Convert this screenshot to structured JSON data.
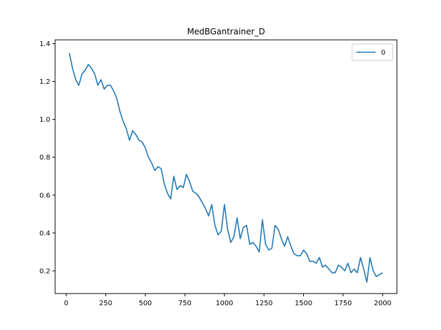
{
  "chart_data": {
    "type": "line",
    "title": "MedBGantrainer_D",
    "xlabel": "",
    "ylabel": "",
    "xlim": [
      -70,
      2090
    ],
    "ylim": [
      0.08,
      1.42
    ],
    "x_ticks": [
      0,
      250,
      500,
      750,
      1000,
      1250,
      1500,
      1750,
      2000
    ],
    "x_tick_labels": [
      "0",
      "250",
      "500",
      "750",
      "1000",
      "1250",
      "1500",
      "1750",
      "2000"
    ],
    "y_ticks": [
      0.2,
      0.4,
      0.6,
      0.8,
      1.0,
      1.2,
      1.4
    ],
    "y_tick_labels": [
      "0.2",
      "0.4",
      "0.6",
      "0.8",
      "1.0",
      "1.2",
      "1.4"
    ],
    "grid": false,
    "legend": {
      "position": "top-right",
      "entries": [
        "0"
      ]
    },
    "series": [
      {
        "name": "0",
        "color": "#1f77b4",
        "x": [
          20,
          40,
          60,
          80,
          100,
          120,
          140,
          160,
          180,
          200,
          220,
          240,
          260,
          280,
          300,
          320,
          340,
          360,
          380,
          400,
          420,
          440,
          460,
          480,
          500,
          520,
          540,
          560,
          580,
          600,
          620,
          640,
          660,
          680,
          700,
          720,
          740,
          760,
          780,
          800,
          820,
          840,
          860,
          880,
          900,
          920,
          940,
          960,
          980,
          1000,
          1020,
          1040,
          1060,
          1080,
          1100,
          1120,
          1140,
          1160,
          1180,
          1200,
          1220,
          1240,
          1260,
          1280,
          1300,
          1320,
          1340,
          1360,
          1380,
          1400,
          1420,
          1440,
          1460,
          1480,
          1500,
          1520,
          1540,
          1560,
          1580,
          1600,
          1620,
          1640,
          1660,
          1680,
          1700,
          1720,
          1740,
          1760,
          1780,
          1800,
          1820,
          1840,
          1860,
          1880,
          1900,
          1920,
          1940,
          1960,
          1980,
          2000
        ],
        "values": [
          1.35,
          1.27,
          1.21,
          1.18,
          1.24,
          1.26,
          1.29,
          1.27,
          1.24,
          1.18,
          1.21,
          1.16,
          1.18,
          1.18,
          1.15,
          1.11,
          1.04,
          0.99,
          0.95,
          0.89,
          0.94,
          0.92,
          0.89,
          0.88,
          0.85,
          0.8,
          0.77,
          0.73,
          0.75,
          0.74,
          0.66,
          0.61,
          0.58,
          0.7,
          0.63,
          0.65,
          0.64,
          0.71,
          0.67,
          0.62,
          0.61,
          0.59,
          0.56,
          0.53,
          0.49,
          0.55,
          0.44,
          0.39,
          0.41,
          0.55,
          0.42,
          0.35,
          0.38,
          0.48,
          0.37,
          0.43,
          0.44,
          0.34,
          0.35,
          0.33,
          0.3,
          0.47,
          0.34,
          0.31,
          0.32,
          0.44,
          0.42,
          0.37,
          0.33,
          0.38,
          0.33,
          0.29,
          0.28,
          0.28,
          0.31,
          0.29,
          0.25,
          0.25,
          0.24,
          0.27,
          0.22,
          0.23,
          0.21,
          0.19,
          0.19,
          0.23,
          0.22,
          0.2,
          0.24,
          0.19,
          0.21,
          0.19,
          0.27,
          0.21,
          0.14,
          0.27,
          0.2,
          0.17,
          0.18,
          0.19
        ]
      }
    ]
  }
}
